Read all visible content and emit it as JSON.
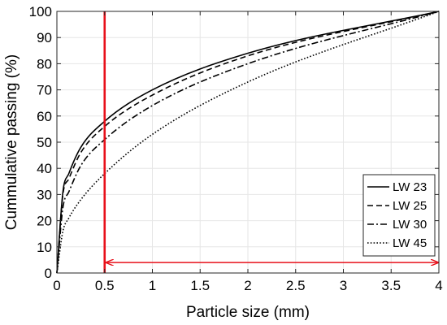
{
  "chart_data": {
    "type": "line",
    "title": "",
    "xlabel": "Particle size (mm)",
    "ylabel": "Cummulative passing (%)",
    "xlim": [
      0,
      4
    ],
    "ylim": [
      0,
      100
    ],
    "xticks": [
      0,
      0.5,
      1,
      1.5,
      2,
      2.5,
      3,
      3.5,
      4
    ],
    "xtick_labels": [
      "0",
      "0.5",
      "1",
      "1.5",
      "2",
      "2.5",
      "3",
      "3.5",
      "4"
    ],
    "yticks": [
      0,
      10,
      20,
      30,
      40,
      50,
      60,
      70,
      80,
      90,
      100
    ],
    "ytick_labels": [
      "0",
      "10",
      "20",
      "30",
      "40",
      "50",
      "60",
      "70",
      "80",
      "90",
      "100"
    ],
    "grid": true,
    "legend_position": "bottom-right",
    "series": [
      {
        "name": "LW 23",
        "line_style": "solid",
        "x": [
          0,
          0.063,
          0.125,
          0.25,
          0.5,
          1,
          2,
          4
        ],
        "y": [
          0,
          31,
          38,
          48,
          58,
          70,
          84,
          100
        ]
      },
      {
        "name": "LW 25",
        "line_style": "dashed",
        "x": [
          0,
          0.063,
          0.125,
          0.25,
          0.5,
          1,
          2,
          4
        ],
        "y": [
          0,
          30,
          36,
          46,
          56,
          68,
          83,
          100
        ]
      },
      {
        "name": "LW 30",
        "line_style": "dashdot",
        "x": [
          0,
          0.063,
          0.125,
          0.25,
          0.5,
          1,
          2,
          4
        ],
        "y": [
          0,
          25,
          31,
          41,
          51,
          64,
          80,
          100
        ]
      },
      {
        "name": "LW 45",
        "line_style": "dotted",
        "x": [
          0,
          0.063,
          0.125,
          0.25,
          0.5,
          1,
          2,
          4
        ],
        "y": [
          0,
          16,
          21,
          28,
          38,
          53,
          73,
          100
        ]
      }
    ],
    "annotations": [
      {
        "type": "vertical-line",
        "x": 0.5,
        "color": "#e8101a"
      },
      {
        "type": "double-arrow",
        "x_from": 0.5,
        "x_to": 4,
        "y": 4,
        "color": "#e8101a"
      }
    ],
    "colors": {
      "series": "#000000",
      "annotation": "#e8101a",
      "grid": "#e6e6e6"
    }
  }
}
